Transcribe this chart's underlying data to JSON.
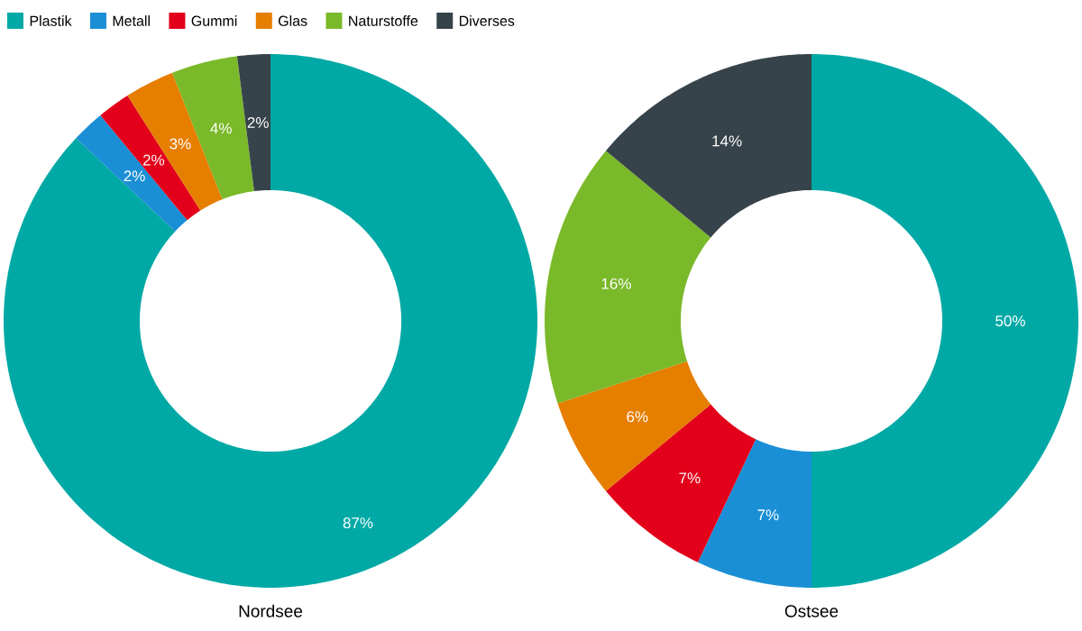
{
  "chart_data": [
    {
      "type": "donut",
      "title": "Nordsee",
      "legend": "top left",
      "categories": [
        "Plastik",
        "Metall",
        "Gummi",
        "Glas",
        "Naturstoffe",
        "Diverses"
      ],
      "values": [
        87,
        2,
        2,
        3,
        4,
        2
      ],
      "value_labels": [
        "87%",
        "2%",
        "2%",
        "3%",
        "4%",
        "2%"
      ],
      "colors": [
        "#00a9a5",
        "#1a8fd6",
        "#e2001a",
        "#e67e00",
        "#7ab929",
        "#37434a"
      ]
    },
    {
      "type": "donut",
      "title": "Ostsee",
      "categories": [
        null,
        null,
        null,
        null,
        null,
        null
      ],
      "values": [
        50,
        7,
        7,
        6,
        16,
        14
      ],
      "value_labels": [
        "50%",
        "7%",
        "7%",
        "6%",
        "16%",
        "14%"
      ],
      "colors": [
        "#00a9a5",
        "#1a8fd6",
        "#e2001a",
        "#e67e00",
        "#7ab929",
        "#37434a"
      ]
    }
  ]
}
